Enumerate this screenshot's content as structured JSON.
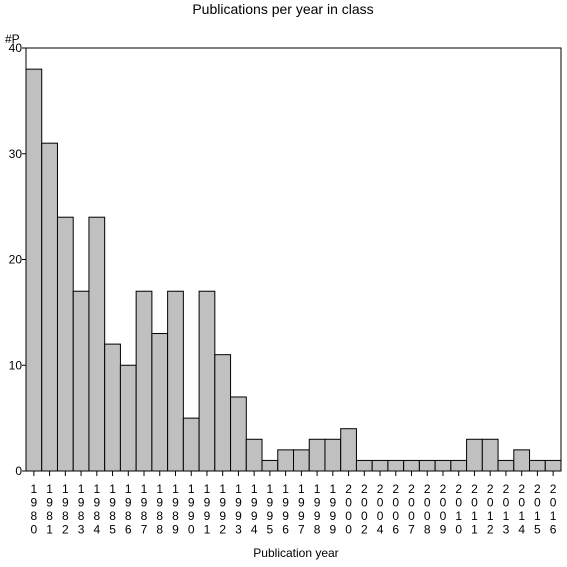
{
  "chart_data": {
    "type": "bar",
    "title": "Publications per year in class",
    "ylabel": "#P",
    "xlabel": "Publication year",
    "ylim": [
      0,
      40
    ],
    "yticks": [
      0,
      10,
      20,
      30,
      40
    ],
    "categories": [
      "1980",
      "1981",
      "1982",
      "1983",
      "1984",
      "1985",
      "1986",
      "1987",
      "1988",
      "1989",
      "1990",
      "1991",
      "1992",
      "1993",
      "1994",
      "1995",
      "1996",
      "1997",
      "1998",
      "1999",
      "2000",
      "2002",
      "2004",
      "2006",
      "2007",
      "2008",
      "2009",
      "2010",
      "2011",
      "2012",
      "2013",
      "2014",
      "2015",
      "2016"
    ],
    "values": [
      38,
      31,
      24,
      17,
      24,
      12,
      10,
      17,
      13,
      17,
      5,
      17,
      11,
      7,
      3,
      1,
      2,
      2,
      3,
      3,
      4,
      1,
      1,
      1,
      1,
      1,
      1,
      1,
      3,
      3,
      1,
      2,
      1,
      1
    ],
    "bar_color": "#c0c0c0",
    "grid": false
  }
}
